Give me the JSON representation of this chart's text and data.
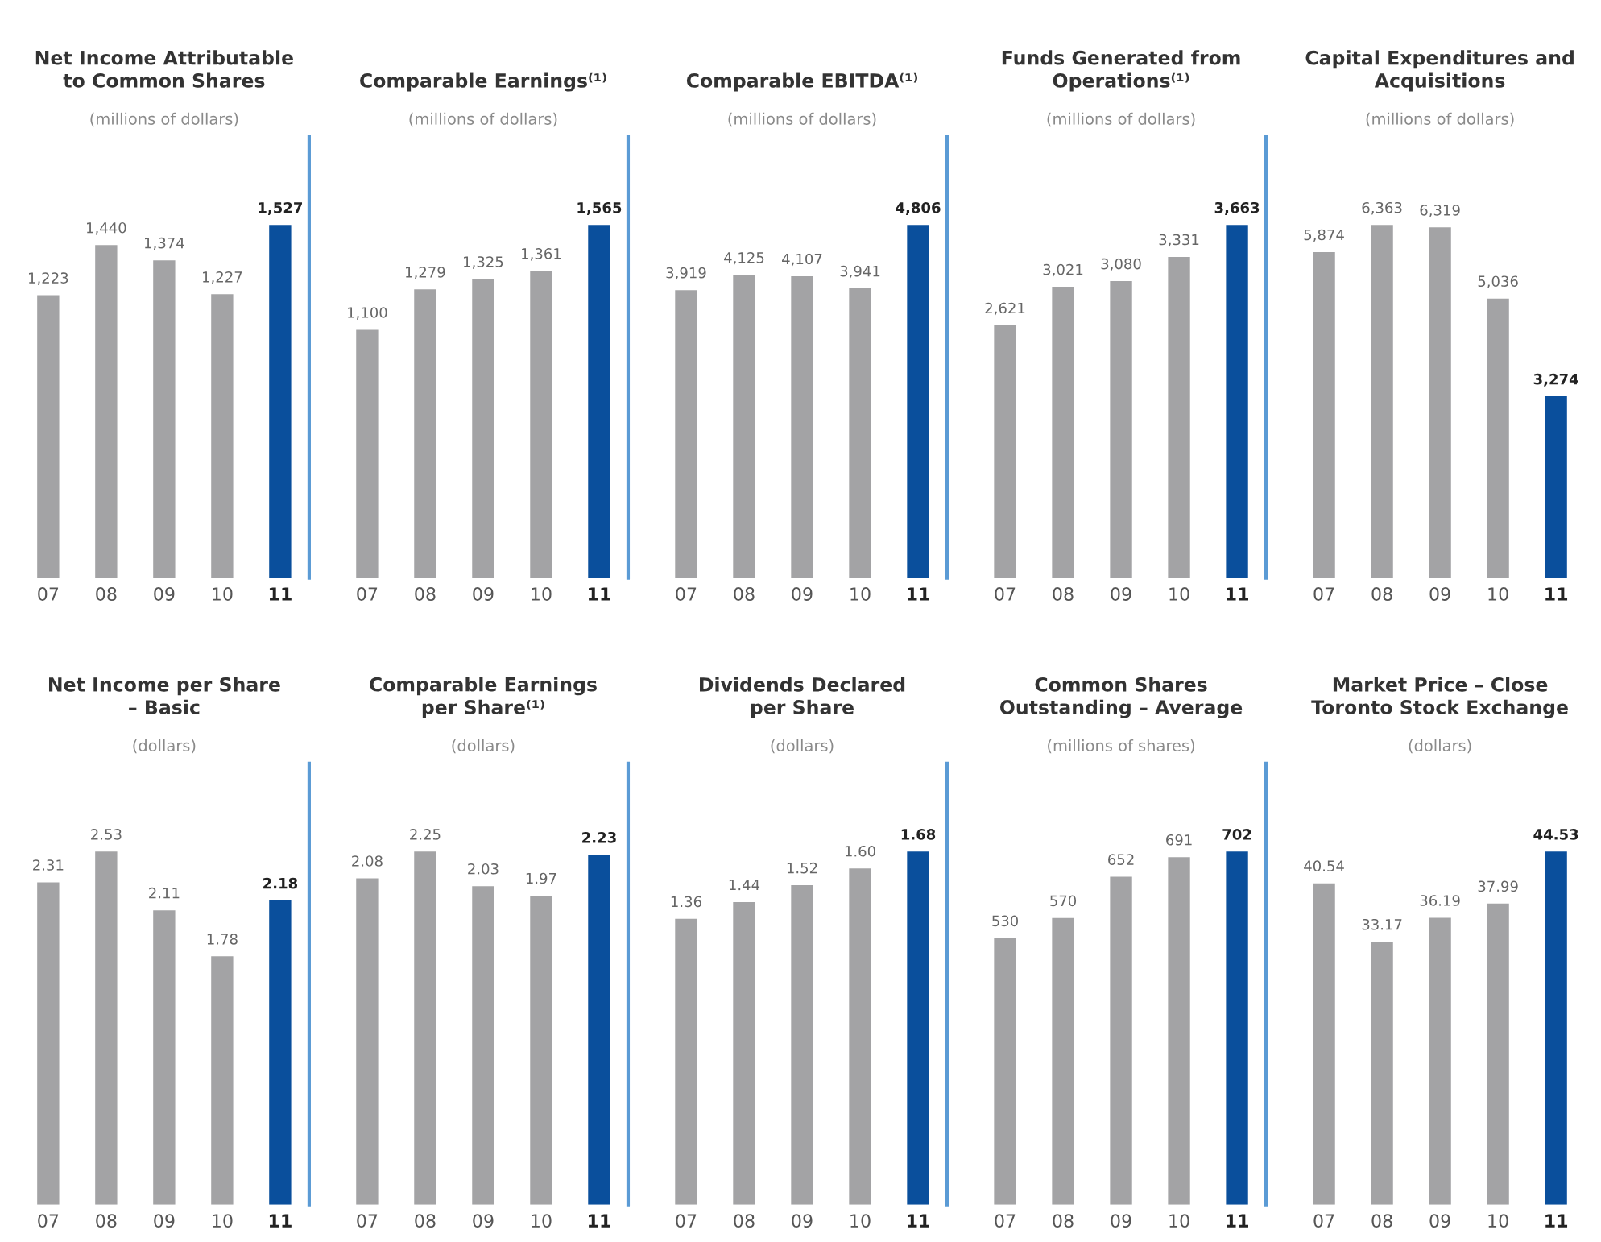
{
  "chart_data": [
    {
      "type": "bar",
      "title": "Net Income Attributable\nto Common Shares",
      "subtitle": "(millions of dollars)",
      "categories": [
        "07",
        "08",
        "09",
        "10",
        "11"
      ],
      "values": [
        1223,
        1440,
        1374,
        1227,
        1527
      ],
      "value_labels": [
        "1,223",
        "1,440",
        "1,374",
        "1,227",
        "1,527"
      ],
      "colors": [
        "#a3a3a5",
        "#a3a3a5",
        "#a3a3a5",
        "#a3a3a5",
        "#0a4f9c"
      ]
    },
    {
      "type": "bar",
      "title": "Comparable Earnings⁽¹⁾",
      "subtitle": "(millions of dollars)",
      "categories": [
        "07",
        "08",
        "09",
        "10",
        "11"
      ],
      "values": [
        1100,
        1279,
        1325,
        1361,
        1565
      ],
      "value_labels": [
        "1,100",
        "1,279",
        "1,325",
        "1,361",
        "1,565"
      ],
      "colors": [
        "#a3a3a5",
        "#a3a3a5",
        "#a3a3a5",
        "#a3a3a5",
        "#0a4f9c"
      ]
    },
    {
      "type": "bar",
      "title": "Comparable EBITDA⁽¹⁾",
      "subtitle": "(millions of dollars)",
      "categories": [
        "07",
        "08",
        "09",
        "10",
        "11"
      ],
      "values": [
        3919,
        4125,
        4107,
        3941,
        4806
      ],
      "value_labels": [
        "3,919",
        "4,125",
        "4,107",
        "3,941",
        "4,806"
      ],
      "colors": [
        "#a3a3a5",
        "#a3a3a5",
        "#a3a3a5",
        "#a3a3a5",
        "#0a4f9c"
      ]
    },
    {
      "type": "bar",
      "title": "Funds Generated from\nOperations⁽¹⁾",
      "subtitle": "(millions of dollars)",
      "categories": [
        "07",
        "08",
        "09",
        "10",
        "11"
      ],
      "values": [
        2621,
        3021,
        3080,
        3331,
        3663
      ],
      "value_labels": [
        "2,621",
        "3,021",
        "3,080",
        "3,331",
        "3,663"
      ],
      "colors": [
        "#a3a3a5",
        "#a3a3a5",
        "#a3a3a5",
        "#a3a3a5",
        "#0a4f9c"
      ]
    },
    {
      "type": "bar",
      "title": "Capital Expenditures and\nAcquisitions",
      "subtitle": "(millions of dollars)",
      "categories": [
        "07",
        "08",
        "09",
        "10",
        "11"
      ],
      "values": [
        5874,
        6363,
        6319,
        5036,
        3274
      ],
      "value_labels": [
        "5,874",
        "6,363",
        "6,319",
        "5,036",
        "3,274"
      ],
      "colors": [
        "#a3a3a5",
        "#a3a3a5",
        "#a3a3a5",
        "#a3a3a5",
        "#0a4f9c"
      ]
    },
    {
      "type": "bar",
      "title": "Net Income per Share\n– Basic",
      "subtitle": "(dollars)",
      "categories": [
        "07",
        "08",
        "09",
        "10",
        "11"
      ],
      "values": [
        2.31,
        2.53,
        2.11,
        1.78,
        2.18
      ],
      "data_labels": true,
      "colors": [
        "#a3a3a5",
        "#a3a3a5",
        "#a3a3a5",
        "#a3a3a5",
        "#0a4f9c"
      ]
    },
    {
      "type": "bar",
      "title": "Comparable Earnings\nper Share⁽¹⁾",
      "subtitle": "(dollars)",
      "categories": [
        "07",
        "08",
        "09",
        "10",
        "11"
      ],
      "values": [
        2.08,
        2.25,
        2.03,
        1.97,
        2.23
      ],
      "data_labels": true,
      "colors": [
        "#a3a3a5",
        "#a3a3a5",
        "#a3a3a5",
        "#a3a3a5",
        "#0a4f9c"
      ]
    },
    {
      "type": "bar",
      "title": "Dividends Declared\nper Share",
      "subtitle": "(dollars)",
      "categories": [
        "07",
        "08",
        "09",
        "10",
        "11"
      ],
      "values": [
        1.36,
        1.44,
        1.52,
        1.6,
        1.68
      ],
      "value_labels": [
        "1.36",
        "1.44",
        "1.52",
        "1.60",
        "1.68"
      ],
      "colors": [
        "#a3a3a5",
        "#a3a3a5",
        "#a3a3a5",
        "#a3a3a5",
        "#0a4f9c"
      ]
    },
    {
      "type": "bar",
      "title": "Common Shares\nOutstanding – Average",
      "subtitle": "(millions of shares)",
      "categories": [
        "07",
        "08",
        "09",
        "10",
        "11"
      ],
      "values": [
        530,
        570,
        652,
        691,
        702
      ],
      "data_labels": true,
      "colors": [
        "#a3a3a5",
        "#a3a3a5",
        "#a3a3a5",
        "#a3a3a5",
        "#0a4f9c"
      ]
    },
    {
      "type": "bar",
      "title": "Market Price – Close\nToronto Stock Exchange",
      "subtitle": "(dollars)",
      "categories": [
        "07",
        "08",
        "09",
        "10",
        "11"
      ],
      "values": [
        40.54,
        33.17,
        36.19,
        37.99,
        44.53
      ],
      "data_labels": true,
      "colors": [
        "#a3a3a5",
        "#a3a3a5",
        "#a3a3a5",
        "#a3a3a5",
        "#0a4f9c"
      ]
    }
  ]
}
